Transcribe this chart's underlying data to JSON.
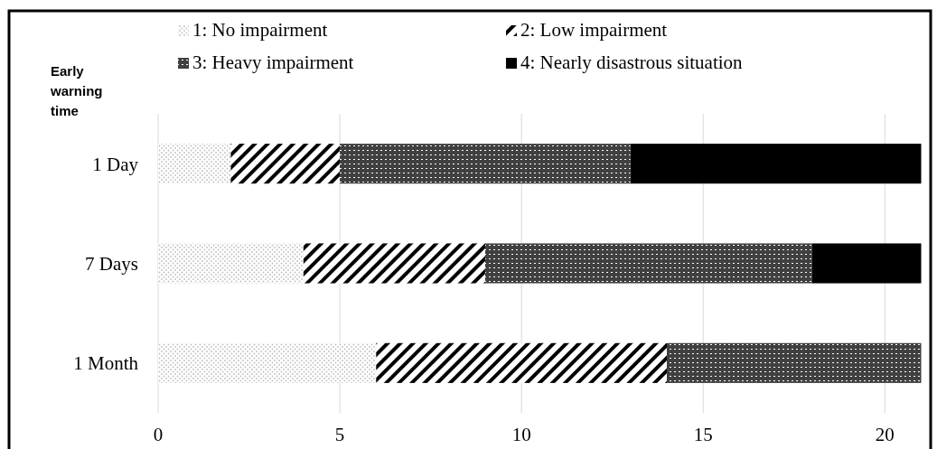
{
  "chart_data": {
    "type": "bar",
    "orientation": "horizontal",
    "stacked": true,
    "ylabel": "Early warning time",
    "categories": [
      "1 Day",
      "7 Days",
      "1 Month"
    ],
    "series": [
      {
        "name": "1: No impairment",
        "color": "#bfbfbf",
        "values": [
          2,
          4,
          6
        ]
      },
      {
        "name": "2: Low impairment",
        "color": "#7f7f7f",
        "values": [
          3,
          5,
          8
        ]
      },
      {
        "name": "3: Heavy impairment",
        "color": "#404040",
        "values": [
          8,
          9,
          7
        ]
      },
      {
        "name": "4: Nearly disastrous situation",
        "color": "#000000",
        "values": [
          8,
          3,
          0
        ]
      }
    ],
    "xlim": [
      0,
      21
    ],
    "xticks": [
      0,
      5,
      10,
      15,
      20
    ],
    "grid": "x",
    "legend": "top"
  }
}
